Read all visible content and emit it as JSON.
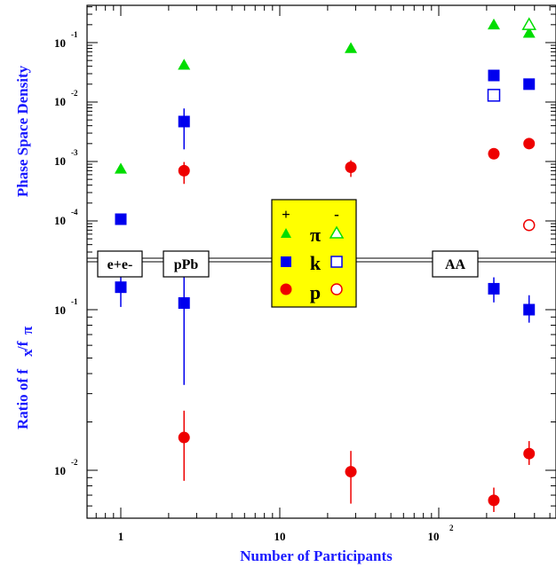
{
  "colors": {
    "pi": "#00dd00",
    "k": "#0000ee",
    "p": "#ee0000",
    "axis_label": "#1a1aff",
    "legend_bg": "#ffff00"
  },
  "chart_data": {
    "type": "scatter",
    "xlabel": "Number of Participants",
    "x_scale": "log",
    "xlim": [
      0.5,
      500
    ],
    "x_tick_labels": [
      "1",
      "10",
      "10",
      "2"
    ],
    "panels": [
      {
        "name": "upper",
        "ylabel": "Phase Space Density",
        "y_scale": "log",
        "ylim": [
          2e-05,
          0.3
        ],
        "y_tick_labels": [
          {
            "base": "10",
            "exp": "-1"
          },
          {
            "base": "10",
            "exp": "-2"
          },
          {
            "base": "10",
            "exp": "-3"
          },
          {
            "base": "10",
            "exp": "-4"
          }
        ],
        "series": [
          {
            "marker": "triangle",
            "filled": true,
            "color": "pi",
            "points": [
              {
                "x": 1,
                "y": 0.00075
              },
              {
                "x": 2.5,
                "y": 0.042
              },
              {
                "x": 28,
                "y": 0.08
              },
              {
                "x": 222,
                "y": 0.2
              },
              {
                "x": 370,
                "y": 0.145
              }
            ]
          },
          {
            "marker": "triangle",
            "filled": false,
            "color": "pi",
            "points": [
              {
                "x": 370,
                "y": 0.2
              }
            ]
          },
          {
            "marker": "square",
            "filled": true,
            "color": "k",
            "points": [
              {
                "x": 1,
                "y": 0.000107
              },
              {
                "x": 2.5,
                "y": 0.0047,
                "err": [
                  0.0016,
                  0.0078
                ]
              },
              {
                "x": 222,
                "y": 0.028
              },
              {
                "x": 370,
                "y": 0.02
              }
            ]
          },
          {
            "marker": "square",
            "filled": false,
            "color": "k",
            "points": [
              {
                "x": 222,
                "y": 0.013,
                "err": [
                  0.011,
                  0.015
                ]
              }
            ]
          },
          {
            "marker": "circle",
            "filled": true,
            "color": "p",
            "points": [
              {
                "x": 2.5,
                "y": 0.0007,
                "err": [
                  0.00042,
                  0.00098
                ]
              },
              {
                "x": 28,
                "y": 0.0008,
                "err": [
                  0.00055,
                  0.00105
                ]
              },
              {
                "x": 222,
                "y": 0.00135
              },
              {
                "x": 370,
                "y": 0.002
              }
            ]
          },
          {
            "marker": "circle",
            "filled": false,
            "color": "p",
            "points": [
              {
                "x": 370,
                "y": 8.5e-05,
                "err": [
                  7e-05,
                  0.0001
                ]
              }
            ]
          }
        ]
      },
      {
        "name": "lower",
        "ylabel": "Ratio of f",
        "ylabel_sub1": "x",
        "ylabel_mid": "/f",
        "ylabel_sub2": "π",
        "y_scale": "log",
        "ylim": [
          0.005,
          0.17
        ],
        "y_tick_labels": [
          {
            "base": "10",
            "exp": "-1"
          },
          {
            "base": "10",
            "exp": "-2"
          }
        ],
        "series": [
          {
            "marker": "square",
            "filled": true,
            "color": "k",
            "points": [
              {
                "x": 1,
                "y": 0.138,
                "err": [
                  0.104,
                  0.17
                ]
              },
              {
                "x": 2.5,
                "y": 0.11,
                "err": [
                  0.034,
                  0.17
                ]
              },
              {
                "x": 222,
                "y": 0.135,
                "err": [
                  0.111,
                  0.159
                ]
              },
              {
                "x": 370,
                "y": 0.1,
                "err": [
                  0.083,
                  0.123
                ]
              }
            ]
          },
          {
            "marker": "circle",
            "filled": true,
            "color": "p",
            "points": [
              {
                "x": 2.5,
                "y": 0.016,
                "err": [
                  0.0086,
                  0.0235
                ]
              },
              {
                "x": 28,
                "y": 0.0098,
                "err": [
                  0.0062,
                  0.0132
                ]
              },
              {
                "x": 222,
                "y": 0.0065,
                "err": [
                  0.0055,
                  0.0078
                ]
              },
              {
                "x": 370,
                "y": 0.0127,
                "err": [
                  0.0108,
                  0.0152
                ]
              }
            ]
          }
        ]
      }
    ],
    "annotations": [
      "e+e-",
      "pPb",
      "AA"
    ],
    "legend": {
      "header_filled": "+",
      "header_open": "-",
      "entries": [
        {
          "label": "π",
          "color": "pi",
          "marker": "triangle"
        },
        {
          "label": "k",
          "color": "k",
          "marker": "square"
        },
        {
          "label": "p",
          "color": "p",
          "marker": "circle"
        }
      ]
    }
  }
}
